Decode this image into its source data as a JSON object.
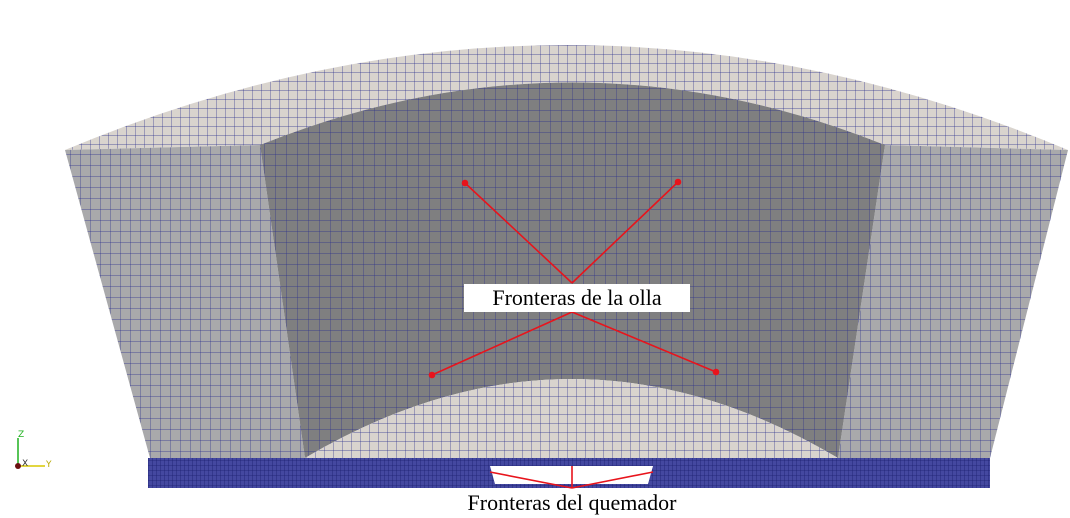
{
  "annotations": {
    "pot_boundaries": "Fronteras de la olla",
    "burner_boundaries": "Fronteras del quemador"
  },
  "axes": {
    "z": "Z",
    "x": "X",
    "y": "Y"
  }
}
